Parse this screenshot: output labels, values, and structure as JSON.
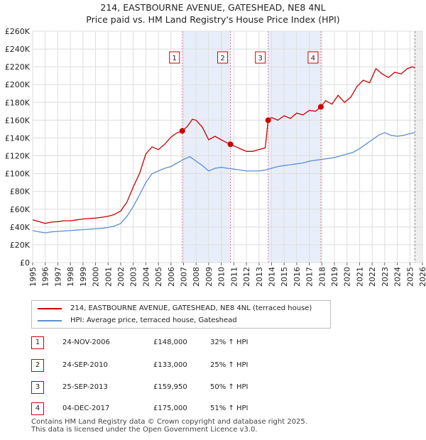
{
  "title": "214, EASTBOURNE AVENUE, GATESHEAD, NE8 4NL",
  "subtitle": "Price paid vs. HM Land Registry's House Price Index (HPI)",
  "colors": {
    "property": "#cc0000",
    "hpi": "#5b8fd0",
    "shade": "#e8eef9",
    "marker_line": "#e07b8b"
  },
  "chart_data": {
    "type": "line",
    "title": "214, EASTBOURNE AVENUE, GATESHEAD, NE8 4NL",
    "subtitle": "Price paid vs. HM Land Registry's House Price Index (HPI)",
    "xlim": [
      1995,
      2026
    ],
    "ylim": [
      0,
      260000
    ],
    "y_ticks": [
      0,
      20000,
      40000,
      60000,
      80000,
      100000,
      120000,
      140000,
      160000,
      180000,
      200000,
      220000,
      240000,
      260000
    ],
    "y_tick_labels": [
      "£0",
      "£20K",
      "£40K",
      "£60K",
      "£80K",
      "£100K",
      "£120K",
      "£140K",
      "£160K",
      "£180K",
      "£200K",
      "£220K",
      "£240K",
      "£260K"
    ],
    "x_ticks": [
      1995,
      1996,
      1997,
      1998,
      1999,
      2000,
      2001,
      2002,
      2003,
      2004,
      2005,
      2006,
      2007,
      2008,
      2009,
      2010,
      2011,
      2012,
      2013,
      2014,
      2015,
      2016,
      2017,
      2018,
      2019,
      2020,
      2021,
      2022,
      2023,
      2024,
      2025,
      2026
    ],
    "x_tick_labels": [
      "1995",
      "1996",
      "1997",
      "1998",
      "1999",
      "2000",
      "2001",
      "2002",
      "2003",
      "2004",
      "2005",
      "2006",
      "2007",
      "2008",
      "2009",
      "2010",
      "2011",
      "2012",
      "2013",
      "2014",
      "2015",
      "2016",
      "2017",
      "2018",
      "2019",
      "2020",
      "2021",
      "2022",
      "2023",
      "2024",
      "2025",
      "2026"
    ],
    "grid": true,
    "series": [
      {
        "name": "214, EASTBOURNE AVENUE, GATESHEAD, NE8 4NL (terraced house)",
        "x": [
          1995.0,
          1995.5,
          1996.0,
          1996.5,
          1997.0,
          1997.5,
          1998.0,
          1998.5,
          1999.0,
          1999.5,
          2000.0,
          2000.5,
          2001.0,
          2001.5,
          2002.0,
          2002.5,
          2003.0,
          2003.5,
          2004.0,
          2004.5,
          2005.0,
          2005.5,
          2006.0,
          2006.5,
          2006.9,
          2007.3,
          2007.7,
          2008.0,
          2008.5,
          2009.0,
          2009.5,
          2010.0,
          2010.4,
          2010.73,
          2011.0,
          2011.5,
          2012.0,
          2012.5,
          2013.0,
          2013.5,
          2013.73,
          2014.0,
          2014.5,
          2015.0,
          2015.5,
          2016.0,
          2016.5,
          2017.0,
          2017.5,
          2017.92,
          2018.3,
          2018.8,
          2019.3,
          2019.8,
          2020.3,
          2020.8,
          2021.3,
          2021.8,
          2022.3,
          2022.8,
          2023.3,
          2023.8,
          2024.3,
          2024.8,
          2025.2,
          2025.4
        ],
        "y": [
          48000,
          46000,
          44000,
          45500,
          46000,
          47000,
          47000,
          48000,
          49000,
          49500,
          50000,
          51000,
          52000,
          54000,
          58000,
          68000,
          85000,
          100000,
          122000,
          130000,
          127000,
          133000,
          141000,
          146000,
          148000,
          153000,
          161000,
          160000,
          152000,
          138000,
          142000,
          138000,
          135000,
          133000,
          131000,
          128000,
          125000,
          125000,
          127000,
          129000,
          159950,
          163000,
          160000,
          165000,
          162000,
          168000,
          166000,
          171000,
          170000,
          175000,
          182000,
          178000,
          188000,
          180000,
          186000,
          198000,
          205000,
          202000,
          218000,
          212000,
          208000,
          214000,
          212000,
          218000,
          220000,
          219000
        ]
      },
      {
        "name": "HPI: Average price, terraced house, Gateshead",
        "x": [
          1995.0,
          1995.5,
          1996.0,
          1996.5,
          1997.0,
          1997.5,
          1998.0,
          1998.5,
          1999.0,
          1999.5,
          2000.0,
          2000.5,
          2001.0,
          2001.5,
          2002.0,
          2002.5,
          2003.0,
          2003.5,
          2004.0,
          2004.5,
          2005.0,
          2005.5,
          2006.0,
          2006.5,
          2007.0,
          2007.5,
          2008.0,
          2008.5,
          2009.0,
          2009.5,
          2010.0,
          2010.5,
          2011.0,
          2011.5,
          2012.0,
          2012.5,
          2013.0,
          2013.5,
          2014.0,
          2014.5,
          2015.0,
          2015.5,
          2016.0,
          2016.5,
          2017.0,
          2017.5,
          2018.0,
          2018.5,
          2019.0,
          2019.5,
          2020.0,
          2020.5,
          2021.0,
          2021.5,
          2022.0,
          2022.5,
          2023.0,
          2023.5,
          2024.0,
          2024.5,
          2025.0,
          2025.4
        ],
        "y": [
          36000,
          34500,
          33500,
          34500,
          35000,
          35500,
          36000,
          36500,
          37000,
          37500,
          38000,
          38500,
          39500,
          41000,
          44000,
          52000,
          63000,
          76000,
          90000,
          100000,
          103000,
          106000,
          108000,
          112000,
          116000,
          119000,
          114000,
          109000,
          103000,
          106000,
          107000,
          106000,
          105000,
          104000,
          103000,
          103000,
          103000,
          104000,
          106000,
          108000,
          109000,
          110000,
          111000,
          112000,
          114000,
          115000,
          116000,
          117000,
          118000,
          120000,
          122000,
          124000,
          128000,
          133000,
          138000,
          143000,
          146000,
          143000,
          142000,
          143000,
          145000,
          146000
        ]
      }
    ],
    "sales": [
      {
        "label": "1",
        "x": 2006.9,
        "y": 148000,
        "date": "24-NOV-2006",
        "price": "£148,000",
        "hpi": "32% ↑ HPI"
      },
      {
        "label": "2",
        "x": 2010.73,
        "y": 133000,
        "date": "24-SEP-2010",
        "price": "£133,000",
        "hpi": "25% ↑ HPI"
      },
      {
        "label": "3",
        "x": 2013.73,
        "y": 159950,
        "date": "25-SEP-2013",
        "price": "£159,950",
        "hpi": "50% ↑ HPI"
      },
      {
        "label": "4",
        "x": 2017.92,
        "y": 175000,
        "date": "04-DEC-2017",
        "price": "£175,000",
        "hpi": "51% ↑ HPI"
      }
    ],
    "shaded_ranges": [
      [
        2006.9,
        2010.73
      ],
      [
        2013.73,
        2017.92
      ]
    ],
    "forecast_start": 2025.4
  },
  "legend": {
    "property_label": "214, EASTBOURNE AVENUE, GATESHEAD, NE8 4NL (terraced house)",
    "hpi_label": "HPI: Average price, terraced house, Gateshead"
  },
  "footer": {
    "line1": "Contains HM Land Registry data © Crown copyright and database right 2025.",
    "line2": "This data is licensed under the Open Government Licence v3.0."
  }
}
